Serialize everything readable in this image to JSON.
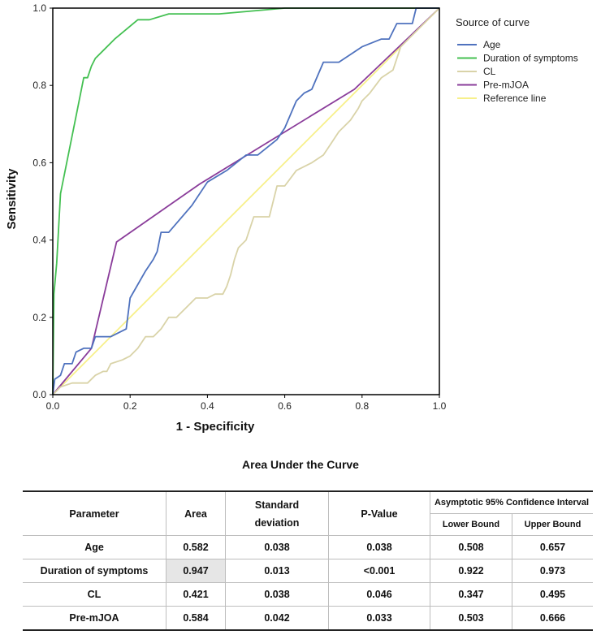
{
  "chart_data": {
    "type": "line",
    "title": "",
    "xlabel": "1 - Specificity",
    "ylabel": "Sensitivity",
    "xlim": [
      0.0,
      1.0
    ],
    "ylim": [
      0.0,
      1.0
    ],
    "xticks": [
      "0.0",
      "0.2",
      "0.4",
      "0.6",
      "0.8",
      "1.0"
    ],
    "yticks": [
      "0.0",
      "0.2",
      "0.4",
      "0.6",
      "0.8",
      "1.0"
    ],
    "legend_title": "Source of curve",
    "legend_position": "right",
    "series": [
      {
        "name": "Age",
        "color": "#4f72be",
        "points": [
          [
            0,
            0
          ],
          [
            0.005,
            0.04
          ],
          [
            0.02,
            0.05
          ],
          [
            0.03,
            0.08
          ],
          [
            0.05,
            0.08
          ],
          [
            0.06,
            0.11
          ],
          [
            0.08,
            0.12
          ],
          [
            0.1,
            0.12
          ],
          [
            0.11,
            0.15
          ],
          [
            0.15,
            0.15
          ],
          [
            0.17,
            0.16
          ],
          [
            0.19,
            0.17
          ],
          [
            0.2,
            0.25
          ],
          [
            0.24,
            0.32
          ],
          [
            0.26,
            0.35
          ],
          [
            0.27,
            0.37
          ],
          [
            0.28,
            0.42
          ],
          [
            0.3,
            0.42
          ],
          [
            0.36,
            0.49
          ],
          [
            0.4,
            0.55
          ],
          [
            0.45,
            0.58
          ],
          [
            0.5,
            0.62
          ],
          [
            0.53,
            0.62
          ],
          [
            0.58,
            0.66
          ],
          [
            0.6,
            0.69
          ],
          [
            0.63,
            0.76
          ],
          [
            0.65,
            0.78
          ],
          [
            0.67,
            0.79
          ],
          [
            0.7,
            0.86
          ],
          [
            0.74,
            0.86
          ],
          [
            0.77,
            0.88
          ],
          [
            0.8,
            0.9
          ],
          [
            0.85,
            0.92
          ],
          [
            0.87,
            0.92
          ],
          [
            0.89,
            0.96
          ],
          [
            0.92,
            0.96
          ],
          [
            0.93,
            0.96
          ],
          [
            0.94,
            1.0
          ],
          [
            1,
            1
          ]
        ]
      },
      {
        "name": "Duration of symptoms",
        "color": "#44c052",
        "points": [
          [
            0,
            0
          ],
          [
            0.003,
            0.26
          ],
          [
            0.01,
            0.34
          ],
          [
            0.02,
            0.52
          ],
          [
            0.06,
            0.72
          ],
          [
            0.08,
            0.82
          ],
          [
            0.09,
            0.82
          ],
          [
            0.1,
            0.85
          ],
          [
            0.11,
            0.87
          ],
          [
            0.16,
            0.92
          ],
          [
            0.22,
            0.97
          ],
          [
            0.25,
            0.97
          ],
          [
            0.3,
            0.985
          ],
          [
            0.43,
            0.985
          ],
          [
            0.6,
            1.0
          ],
          [
            1,
            1
          ]
        ]
      },
      {
        "name": "CL",
        "color": "#d9d3a8",
        "points": [
          [
            0,
            0
          ],
          [
            0.02,
            0.02
          ],
          [
            0.05,
            0.03
          ],
          [
            0.09,
            0.03
          ],
          [
            0.11,
            0.05
          ],
          [
            0.13,
            0.06
          ],
          [
            0.14,
            0.06
          ],
          [
            0.15,
            0.08
          ],
          [
            0.18,
            0.09
          ],
          [
            0.2,
            0.1
          ],
          [
            0.22,
            0.12
          ],
          [
            0.24,
            0.15
          ],
          [
            0.26,
            0.15
          ],
          [
            0.28,
            0.17
          ],
          [
            0.3,
            0.2
          ],
          [
            0.32,
            0.2
          ],
          [
            0.35,
            0.23
          ],
          [
            0.37,
            0.25
          ],
          [
            0.4,
            0.25
          ],
          [
            0.42,
            0.26
          ],
          [
            0.44,
            0.26
          ],
          [
            0.45,
            0.28
          ],
          [
            0.46,
            0.31
          ],
          [
            0.47,
            0.35
          ],
          [
            0.48,
            0.38
          ],
          [
            0.5,
            0.4
          ],
          [
            0.52,
            0.46
          ],
          [
            0.56,
            0.46
          ],
          [
            0.58,
            0.54
          ],
          [
            0.6,
            0.54
          ],
          [
            0.63,
            0.58
          ],
          [
            0.67,
            0.6
          ],
          [
            0.7,
            0.62
          ],
          [
            0.72,
            0.65
          ],
          [
            0.74,
            0.68
          ],
          [
            0.77,
            0.71
          ],
          [
            0.79,
            0.74
          ],
          [
            0.8,
            0.76
          ],
          [
            0.82,
            0.78
          ],
          [
            0.85,
            0.82
          ],
          [
            0.88,
            0.84
          ],
          [
            0.9,
            0.9
          ],
          [
            0.93,
            0.93
          ],
          [
            0.95,
            0.95
          ],
          [
            1,
            1
          ]
        ]
      },
      {
        "name": "Pre-mJOA",
        "color": "#8a3c9a",
        "points": [
          [
            0,
            0
          ],
          [
            0.1,
            0.12
          ],
          [
            0.165,
            0.395
          ],
          [
            0.38,
            0.545
          ],
          [
            0.78,
            0.79
          ],
          [
            1,
            1
          ]
        ]
      },
      {
        "name": "Reference line",
        "color": "#f7f08a",
        "points": [
          [
            0,
            0
          ],
          [
            1,
            1
          ]
        ]
      }
    ]
  },
  "auc_table": {
    "title": "Area Under the Curve",
    "headers": {
      "parameter": "Parameter",
      "area": "Area",
      "std_line1": "Standard",
      "std_line2": "deviation",
      "p_value": "P-Value",
      "ci": "Asymptotic 95% Confidence Interval",
      "lower": "Lower Bound",
      "upper": "Upper Bound"
    },
    "rows": [
      {
        "parameter": "Age",
        "area": "0.582",
        "std": "0.038",
        "p": "0.038",
        "lower": "0.508",
        "upper": "0.657"
      },
      {
        "parameter": "Duration of symptoms",
        "area": "0.947",
        "std": "0.013",
        "p": "<0.001",
        "lower": "0.922",
        "upper": "0.973"
      },
      {
        "parameter": "CL",
        "area": "0.421",
        "std": "0.038",
        "p": "0.046",
        "lower": "0.347",
        "upper": "0.495"
      },
      {
        "parameter": "Pre-mJOA",
        "area": "0.584",
        "std": "0.042",
        "p": "0.033",
        "lower": "0.503",
        "upper": "0.666"
      }
    ]
  }
}
